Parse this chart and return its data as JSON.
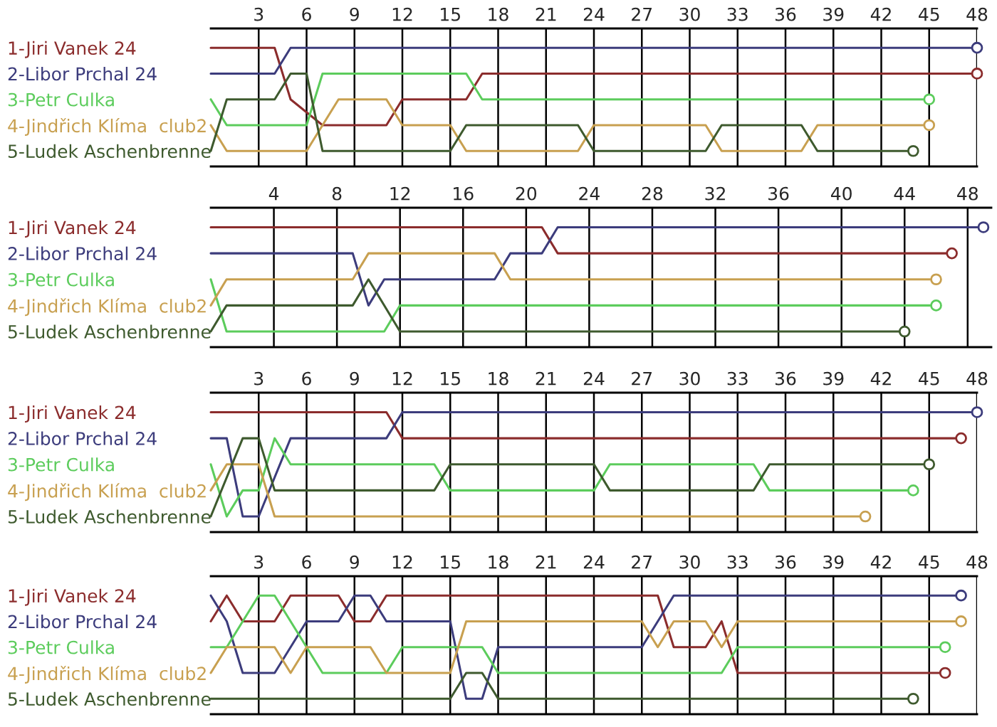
{
  "chart_data": [
    {
      "type": "line",
      "xlim": [
        0,
        48
      ],
      "xticks": [
        3,
        6,
        9,
        12,
        15,
        18,
        21,
        24,
        27,
        30,
        33,
        36,
        39,
        42,
        45,
        48
      ],
      "ylim": [
        5.6,
        0.25
      ],
      "yticks": [
        {
          "value": 1,
          "label": "1-Jiri Vanek 24"
        },
        {
          "value": 2,
          "label": "2-Libor Prchal 24"
        },
        {
          "value": 3,
          "label": "3-Petr Culka"
        },
        {
          "value": 4,
          "label": "4-Jindřich Klíma  club2"
        },
        {
          "value": 5,
          "label": "5-Ludek Aschenbrenne"
        }
      ],
      "grid": "x",
      "series": [
        {
          "color": "#8b2c2c",
          "x": [
            0,
            4,
            5,
            7,
            11,
            12,
            16,
            17,
            48
          ],
          "values": [
            1,
            1,
            3,
            4,
            4,
            3,
            3,
            2,
            2
          ]
        },
        {
          "color": "#3c3c7c",
          "x": [
            0,
            4,
            5,
            48
          ],
          "values": [
            2,
            2,
            1,
            1
          ]
        },
        {
          "color": "#5ccc5c",
          "x": [
            0,
            1,
            6,
            7,
            16,
            17,
            45
          ],
          "values": [
            3,
            4,
            4,
            2,
            2,
            3,
            3
          ]
        },
        {
          "color": "#c8a050",
          "x": [
            0,
            1,
            6,
            8,
            11,
            12,
            15,
            16,
            23,
            24,
            31,
            32,
            37,
            38,
            45
          ],
          "values": [
            4,
            5,
            5,
            3,
            3,
            4,
            4,
            5,
            5,
            4,
            4,
            5,
            5,
            4,
            4
          ]
        },
        {
          "color": "#3e5a2e",
          "x": [
            0,
            1,
            4,
            5,
            6,
            7,
            15,
            16,
            23,
            24,
            31,
            32,
            37,
            38,
            44
          ],
          "values": [
            5,
            3,
            3,
            2,
            2,
            5,
            5,
            4,
            4,
            5,
            5,
            4,
            4,
            5,
            5
          ]
        }
      ]
    },
    {
      "type": "line",
      "xlim": [
        0,
        49.5
      ],
      "xticks": [
        4,
        8,
        12,
        16,
        20,
        24,
        28,
        32,
        36,
        40,
        44,
        48
      ],
      "ylim": [
        5.6,
        0.25
      ],
      "yticks": [
        {
          "value": 1,
          "label": "1-Jiri Vanek 24"
        },
        {
          "value": 2,
          "label": "2-Libor Prchal 24"
        },
        {
          "value": 3,
          "label": "3-Petr Culka"
        },
        {
          "value": 4,
          "label": "4-Jindřich Klíma  club2"
        },
        {
          "value": 5,
          "label": "5-Ludek Aschenbrenne"
        }
      ],
      "grid": "x",
      "series": [
        {
          "color": "#8b2c2c",
          "x": [
            0,
            21,
            22,
            47
          ],
          "values": [
            1,
            1,
            2,
            2
          ]
        },
        {
          "color": "#3c3c7c",
          "x": [
            0,
            9,
            10,
            11,
            18,
            19,
            21,
            22,
            49
          ],
          "values": [
            2,
            2,
            4,
            3,
            3,
            2,
            2,
            1,
            1
          ]
        },
        {
          "color": "#5ccc5c",
          "x": [
            0,
            1,
            11,
            12,
            46
          ],
          "values": [
            3,
            5,
            5,
            4,
            4
          ]
        },
        {
          "color": "#c8a050",
          "x": [
            0,
            1,
            9,
            10,
            18,
            19,
            46
          ],
          "values": [
            4,
            3,
            3,
            2,
            2,
            3,
            3
          ]
        },
        {
          "color": "#3e5a2e",
          "x": [
            0,
            1,
            9,
            10,
            12,
            44
          ],
          "values": [
            5,
            4,
            4,
            3,
            5,
            5
          ]
        }
      ]
    },
    {
      "type": "line",
      "xlim": [
        0,
        48
      ],
      "xticks": [
        3,
        6,
        9,
        12,
        15,
        18,
        21,
        24,
        27,
        30,
        33,
        36,
        39,
        42,
        45,
        48
      ],
      "ylim": [
        5.6,
        0.25
      ],
      "yticks": [
        {
          "value": 1,
          "label": "1-Jiri Vanek 24"
        },
        {
          "value": 2,
          "label": "2-Libor Prchal 24"
        },
        {
          "value": 3,
          "label": "3-Petr Culka"
        },
        {
          "value": 4,
          "label": "4-Jindřich Klíma  club2"
        },
        {
          "value": 5,
          "label": "5-Ludek Aschenbrenne"
        }
      ],
      "grid": "x",
      "series": [
        {
          "color": "#8b2c2c",
          "x": [
            0,
            11,
            12,
            47
          ],
          "values": [
            1,
            1,
            2,
            2
          ]
        },
        {
          "color": "#3c3c7c",
          "x": [
            0,
            1,
            2,
            3,
            5,
            11,
            12,
            48
          ],
          "values": [
            2,
            2,
            5,
            5,
            2,
            2,
            1,
            1
          ]
        },
        {
          "color": "#5ccc5c",
          "x": [
            0,
            1,
            2,
            3,
            4,
            5,
            14,
            15,
            24,
            25,
            34,
            35,
            44
          ],
          "values": [
            3,
            5,
            4,
            4,
            2,
            3,
            3,
            4,
            4,
            3,
            3,
            4,
            4
          ]
        },
        {
          "color": "#c8a050",
          "x": [
            0,
            1,
            3,
            4,
            41
          ],
          "values": [
            4,
            3,
            3,
            5,
            5
          ]
        },
        {
          "color": "#3e5a2e",
          "x": [
            0,
            2,
            3,
            4,
            14,
            15,
            24,
            25,
            34,
            35,
            45
          ],
          "values": [
            5,
            2,
            2,
            4,
            4,
            3,
            3,
            4,
            4,
            3,
            3
          ]
        }
      ]
    },
    {
      "type": "line",
      "xlim": [
        0,
        48
      ],
      "xticks": [
        3,
        6,
        9,
        12,
        15,
        18,
        21,
        24,
        27,
        30,
        33,
        36,
        39,
        42,
        45,
        48
      ],
      "ylim": [
        5.6,
        0.25
      ],
      "yticks": [
        {
          "value": 1,
          "label": "1-Jiri Vanek 24"
        },
        {
          "value": 2,
          "label": "2-Libor Prchal 24"
        },
        {
          "value": 3,
          "label": "3-Petr Culka"
        },
        {
          "value": 4,
          "label": "4-Jindřich Klíma  club2"
        },
        {
          "value": 5,
          "label": "5-Ludek Aschenbrenne"
        }
      ],
      "grid": "x",
      "series": [
        {
          "color": "#8b2c2c",
          "x": [
            0,
            1,
            2,
            4,
            5,
            8,
            9,
            10,
            11,
            28,
            29,
            31,
            32,
            33,
            46
          ],
          "values": [
            2,
            1,
            2,
            2,
            1,
            1,
            2,
            2,
            1,
            1,
            3,
            3,
            2,
            4,
            4
          ]
        },
        {
          "color": "#3c3c7c",
          "x": [
            0,
            1,
            2,
            4,
            6,
            8,
            9,
            10,
            11,
            15,
            16,
            17,
            18,
            27,
            29,
            47
          ],
          "values": [
            1,
            2,
            4,
            4,
            2,
            2,
            1,
            1,
            2,
            2,
            5,
            5,
            3,
            3,
            1,
            1
          ]
        },
        {
          "color": "#5ccc5c",
          "x": [
            0,
            1,
            3,
            4,
            6,
            7,
            11,
            12,
            17,
            18,
            32,
            33,
            46
          ],
          "values": [
            3,
            3,
            1,
            1,
            3,
            4,
            4,
            3,
            3,
            4,
            4,
            3,
            3
          ]
        },
        {
          "color": "#c8a050",
          "x": [
            0,
            1,
            4,
            5,
            6,
            10,
            11,
            15,
            16,
            27,
            28,
            29,
            31,
            32,
            33,
            47
          ],
          "values": [
            4,
            3,
            3,
            4,
            3,
            3,
            4,
            4,
            2,
            2,
            3,
            2,
            2,
            3,
            2,
            2
          ]
        },
        {
          "color": "#3e5a2e",
          "x": [
            0,
            15,
            16,
            17,
            18,
            44
          ],
          "values": [
            5,
            5,
            4,
            4,
            5,
            5
          ]
        }
      ]
    }
  ]
}
